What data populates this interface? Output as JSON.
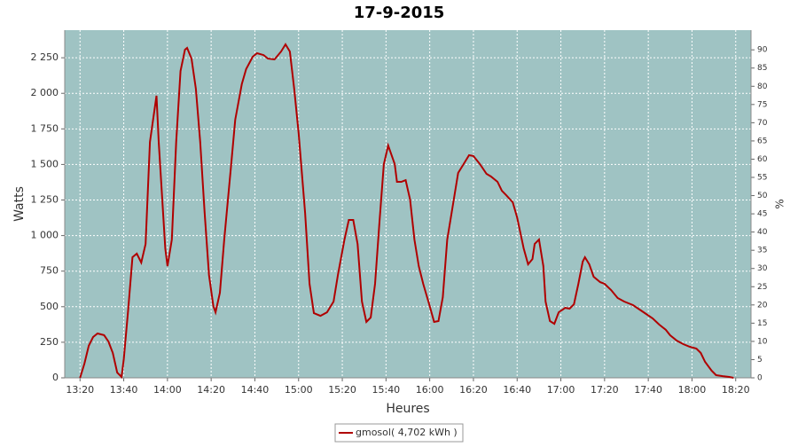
{
  "chart_data": {
    "type": "line",
    "title": "17-9-2015",
    "xlabel": "Heures",
    "ylabel": "Watts",
    "y2label": "%",
    "x": [
      "13:20",
      "13:22",
      "13:24",
      "13:26",
      "13:28",
      "13:31",
      "13:33",
      "13:35",
      "13:37",
      "13:39",
      "13:40",
      "13:42",
      "13:44",
      "13:46",
      "13:48",
      "13:50",
      "13:52",
      "13:55",
      "13:56",
      "13:59",
      "14:00",
      "14:02",
      "14:04",
      "14:06",
      "14:08",
      "14:09",
      "14:11",
      "14:13",
      "14:15",
      "14:17",
      "14:19",
      "14:21",
      "14:22",
      "14:24",
      "14:26",
      "14:29",
      "14:31",
      "14:34",
      "14:36",
      "14:39",
      "14:41",
      "14:44",
      "14:46",
      "14:49",
      "14:52",
      "14:54",
      "14:56",
      "14:58",
      "15:00",
      "15:03",
      "15:05",
      "15:07",
      "15:10",
      "15:13",
      "15:16",
      "15:18",
      "15:21",
      "15:23",
      "15:25",
      "15:27",
      "15:29",
      "15:31",
      "15:33",
      "15:35",
      "15:37",
      "15:39",
      "15:41",
      "15:44",
      "15:45",
      "15:47",
      "15:49",
      "15:51",
      "15:53",
      "15:55",
      "15:57",
      "16:00",
      "16:02",
      "16:04",
      "16:06",
      "16:08",
      "16:11",
      "16:13",
      "16:16",
      "16:18",
      "16:20",
      "16:23",
      "16:26",
      "16:28",
      "16:31",
      "16:33",
      "16:35",
      "16:38",
      "16:40",
      "16:43",
      "16:45",
      "16:47",
      "16:48",
      "16:50",
      "16:52",
      "16:53",
      "16:55",
      "16:57",
      "16:59",
      "17:02",
      "17:04",
      "17:06",
      "17:08",
      "17:10",
      "17:11",
      "17:13",
      "17:15",
      "17:18",
      "17:20",
      "17:23",
      "17:26",
      "17:29",
      "17:33",
      "17:36",
      "17:39",
      "17:42",
      "17:45",
      "17:48",
      "17:50",
      "17:53",
      "17:56",
      "17:59",
      "18:02",
      "18:04",
      "18:06",
      "18:09",
      "18:11",
      "18:14",
      "18:17",
      "18:19"
    ],
    "series": [
      {
        "name": "gmosol( 4,702 kWh )",
        "color": "#b00000",
        "values": [
          0,
          100,
          225,
          287,
          312,
          300,
          255,
          175,
          37,
          6,
          131,
          474,
          848,
          873,
          810,
          941,
          1658,
          1983,
          1658,
          910,
          785,
          972,
          1658,
          2157,
          2307,
          2319,
          2244,
          2032,
          1658,
          1160,
          723,
          505,
          461,
          598,
          972,
          1471,
          1814,
          2064,
          2170,
          2257,
          2282,
          2269,
          2244,
          2238,
          2294,
          2344,
          2294,
          2032,
          1721,
          1160,
          661,
          455,
          436,
          461,
          536,
          723,
          972,
          1110,
          1110,
          941,
          536,
          393,
          424,
          661,
          1097,
          1502,
          1633,
          1502,
          1378,
          1378,
          1390,
          1253,
          972,
          785,
          661,
          505,
          393,
          399,
          567,
          972,
          1253,
          1440,
          1515,
          1565,
          1559,
          1502,
          1434,
          1415,
          1378,
          1315,
          1284,
          1234,
          1128,
          910,
          798,
          835,
          941,
          972,
          785,
          536,
          399,
          380,
          461,
          492,
          486,
          517,
          661,
          817,
          848,
          798,
          711,
          673,
          661,
          617,
          561,
          536,
          511,
          480,
          449,
          418,
          374,
          337,
          299,
          262,
          237,
          218,
          206,
          175,
          112,
          50,
          19,
          12,
          6,
          0
        ]
      }
    ],
    "xlim": [
      "13:13",
      "18:27"
    ],
    "xticks": [
      "13:20",
      "13:40",
      "14:00",
      "14:20",
      "14:40",
      "15:00",
      "15:20",
      "15:40",
      "16:00",
      "16:20",
      "16:40",
      "17:00",
      "17:20",
      "17:40",
      "18:00",
      "18:20"
    ],
    "ylim": [
      0,
      2444
    ],
    "yticks": [
      0,
      250,
      500,
      750,
      {
        "value": 1000,
        "label": "1 000"
      },
      {
        "value": 1250,
        "label": "1 250"
      },
      {
        "value": 1500,
        "label": "1 500"
      },
      {
        "value": 1750,
        "label": "1 750"
      },
      {
        "value": 2000,
        "label": "2 000"
      },
      {
        "value": 2250,
        "label": "2 250"
      }
    ],
    "y2lim": [
      0,
      95.4
    ],
    "y2ticks": [
      0,
      5,
      10,
      15,
      20,
      25,
      30,
      35,
      40,
      45,
      50,
      55,
      60,
      65,
      70,
      75,
      80,
      85,
      90
    ],
    "grid": true,
    "legend": "bottom",
    "background": "#9fc3c3"
  }
}
